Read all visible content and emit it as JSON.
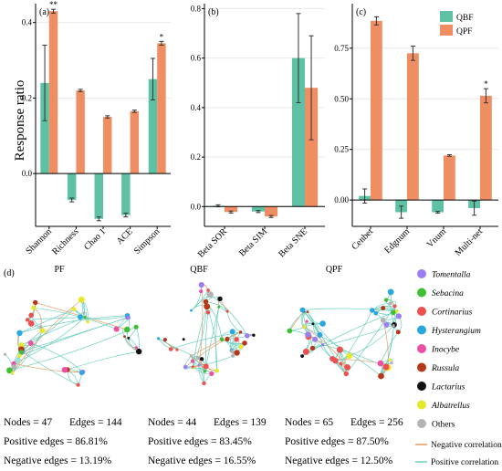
{
  "colors": {
    "QBF": "#5ec1a4",
    "QPF": "#f08e63"
  },
  "y_axis_label": "Response ratio",
  "chart_data": [
    {
      "panel": "(a)",
      "type": "bar",
      "ylim": [
        -0.14,
        0.45
      ],
      "yticks": [
        0.0,
        0.2,
        0.4
      ],
      "ytick_labels": [
        "0.0",
        "0.2",
        "0.4"
      ],
      "categories": [
        "Shannon",
        "Richness",
        "Chao 1",
        "ACE",
        "Simpson"
      ],
      "series": [
        {
          "name": "QBF",
          "values": [
            0.24,
            -0.07,
            -0.12,
            -0.11,
            0.25
          ],
          "errors": [
            0.1,
            0.005,
            0.005,
            0.005,
            0.055
          ]
        },
        {
          "name": "QPF",
          "values": [
            0.43,
            0.22,
            0.15,
            0.165,
            0.345
          ],
          "errors": [
            0.005,
            0.003,
            0.003,
            0.003,
            0.005
          ]
        }
      ],
      "annotations": [
        {
          "category": "Shannon",
          "series": "QPF",
          "text": "**"
        },
        {
          "category": "Simpson",
          "series": "QPF",
          "text": "*"
        }
      ]
    },
    {
      "panel": "(b)",
      "type": "bar",
      "ylim": [
        -0.08,
        0.82
      ],
      "yticks": [
        0.0,
        0.2,
        0.4,
        0.6,
        0.8
      ],
      "ytick_labels": [
        "0.0",
        "0.2",
        "0.4",
        "0.6",
        "0.8"
      ],
      "categories": [
        "Beta SOR",
        "Beta SIM",
        "Beta SNE"
      ],
      "series": [
        {
          "name": "QBF",
          "values": [
            0.003,
            -0.02,
            0.6
          ],
          "errors": [
            0.004,
            0.004,
            0.18
          ]
        },
        {
          "name": "QPF",
          "values": [
            -0.022,
            -0.04,
            0.48
          ],
          "errors": [
            0.004,
            0.004,
            0.21
          ]
        }
      ],
      "annotations": []
    },
    {
      "panel": "(c)",
      "type": "bar",
      "ylim": [
        -0.13,
        0.97
      ],
      "yticks": [
        0.0,
        0.25,
        0.5,
        0.75
      ],
      "ytick_labels": [
        "0.00",
        "0.25",
        "0.50",
        "0.75"
      ],
      "categories": [
        "Cenbet",
        "Edgnum",
        "Vnum",
        "Multi-net"
      ],
      "series": [
        {
          "name": "QBF",
          "values": [
            0.02,
            -0.06,
            -0.06,
            -0.04
          ],
          "errors": [
            0.035,
            0.03,
            0.004,
            0.035
          ]
        },
        {
          "name": "QPF",
          "values": [
            0.885,
            0.725,
            0.22,
            0.515
          ],
          "errors": [
            0.02,
            0.035,
            0.004,
            0.035
          ]
        }
      ],
      "annotations": [
        {
          "category": "Multi-net",
          "series": "QPF",
          "text": "*"
        }
      ]
    }
  ],
  "legend": [
    {
      "label": "QBF",
      "color": "#5ec1a4"
    },
    {
      "label": "QPF",
      "color": "#f08e63"
    }
  ],
  "panel_d": {
    "label": "(d)",
    "networks": [
      {
        "title": "PF",
        "nodes_text": "Nodes = 47",
        "edges_text": "Edges = 144",
        "positive_text": "Positive edges = 86.81%",
        "negative_text": "Negative edges = 13.19%"
      },
      {
        "title": "QBF",
        "nodes_text": "Nodes = 44",
        "edges_text": "Edges = 139",
        "positive_text": "Positive edges = 83.45%",
        "negative_text": "Negative edges = 16.55%"
      },
      {
        "title": "QPF",
        "nodes_text": "Nodes = 65",
        "edges_text": "Edges = 256",
        "positive_text": "Positive edges = 87.50%",
        "negative_text": "Negative edges = 12.50%"
      }
    ],
    "taxa_legend": [
      {
        "label": "Tomentalla",
        "color": "#9d7df2",
        "italic": true
      },
      {
        "label": "Sebacina",
        "color": "#3fbf34",
        "italic": true
      },
      {
        "label": "Cortinarius",
        "color": "#ee4f4f",
        "italic": true
      },
      {
        "label": "Hysterangium",
        "color": "#2aa6e0",
        "italic": true
      },
      {
        "label": "Inocybe",
        "color": "#ec4fa3",
        "italic": true
      },
      {
        "label": "Russula",
        "color": "#b5381a",
        "italic": true
      },
      {
        "label": "Lactarius",
        "color": "#111111",
        "italic": true
      },
      {
        "label": "Albatrellus",
        "color": "#e6e92a",
        "italic": true
      },
      {
        "label": "Others",
        "color": "#b3b3b3",
        "italic": false
      }
    ],
    "edge_legend": [
      {
        "label": "Negative correlation",
        "color": "#e79a61"
      },
      {
        "label": "Positive correlation",
        "color": "#6ccfbf"
      }
    ]
  }
}
